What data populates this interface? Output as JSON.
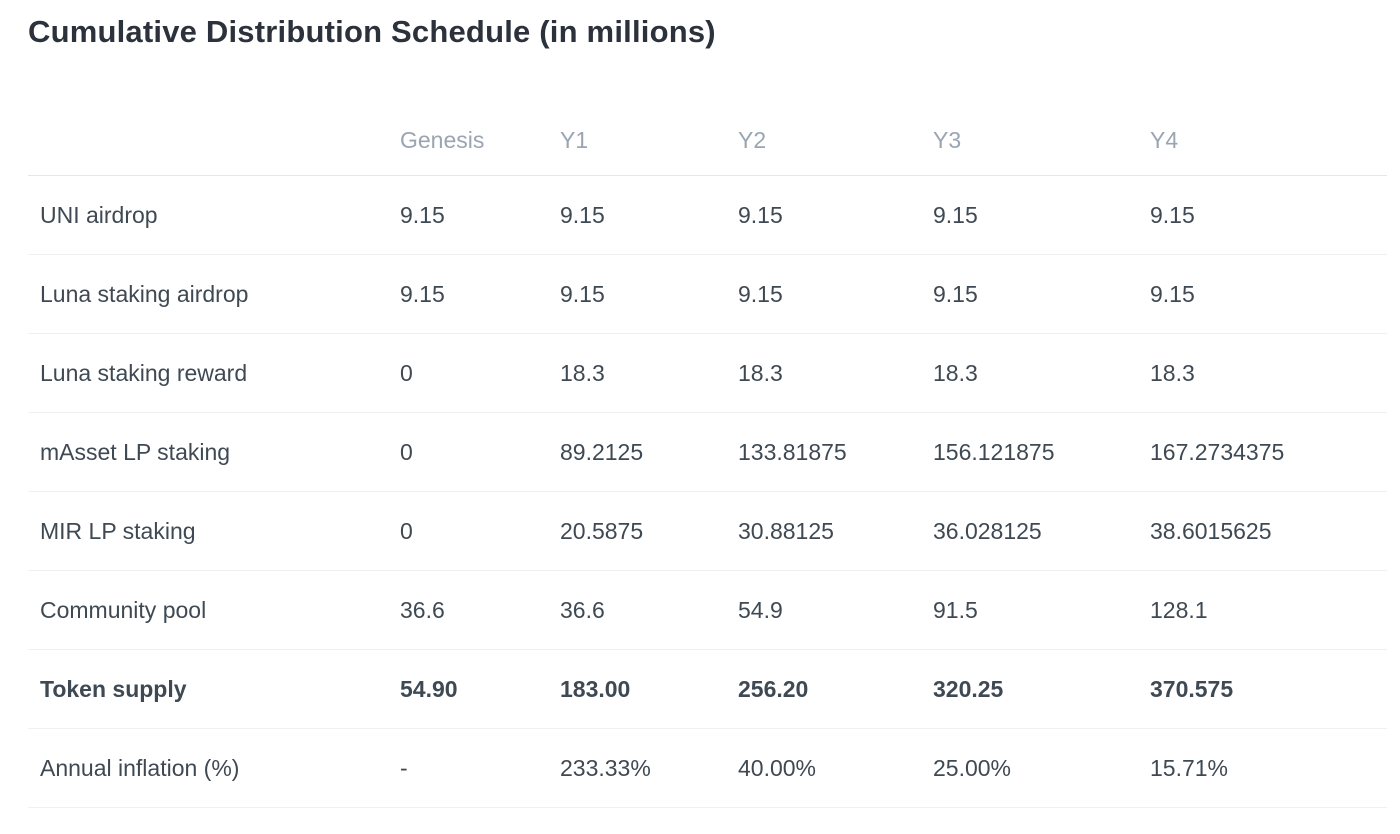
{
  "title": "Cumulative Distribution Schedule (in millions)",
  "table": {
    "columns": [
      "",
      "Genesis",
      "Y1",
      "Y2",
      "Y3",
      "Y4"
    ],
    "rows": [
      {
        "label": "UNI airdrop",
        "values": [
          "9.15",
          "9.15",
          "9.15",
          "9.15",
          "9.15"
        ],
        "bold": false
      },
      {
        "label": "Luna staking airdrop",
        "values": [
          "9.15",
          "9.15",
          "9.15",
          "9.15",
          "9.15"
        ],
        "bold": false
      },
      {
        "label": "Luna staking reward",
        "values": [
          "0",
          "18.3",
          "18.3",
          "18.3",
          "18.3"
        ],
        "bold": false
      },
      {
        "label": "mAsset LP staking",
        "values": [
          "0",
          "89.2125",
          "133.81875",
          "156.121875",
          "167.2734375"
        ],
        "bold": false
      },
      {
        "label": "MIR LP staking",
        "values": [
          "0",
          "20.5875",
          "30.88125",
          "36.028125",
          "38.6015625"
        ],
        "bold": false
      },
      {
        "label": "Community pool",
        "values": [
          "36.6",
          "36.6",
          "54.9",
          "91.5",
          "128.1"
        ],
        "bold": false
      },
      {
        "label": "Token supply",
        "values": [
          "54.90",
          "183.00",
          "256.20",
          "320.25",
          "370.575"
        ],
        "bold": true
      },
      {
        "label": "Annual inflation (%)",
        "values": [
          "-",
          "233.33%",
          "40.00%",
          "25.00%",
          "15.71%"
        ],
        "bold": false
      }
    ]
  },
  "colors": {
    "title_text": "#2b323c",
    "body_text": "#3f4953",
    "header_text": "#9aa5b1",
    "header_border": "#e3e7eb",
    "row_border": "#eef1f4",
    "background": "#ffffff"
  }
}
